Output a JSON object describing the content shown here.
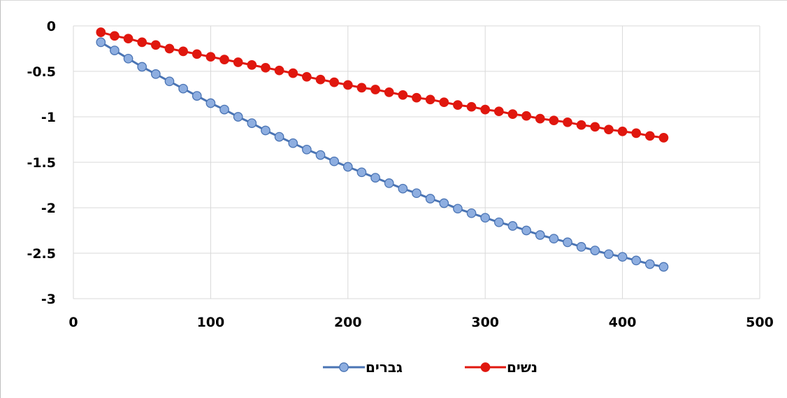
{
  "chart_data": {
    "type": "scatter",
    "title": "",
    "xlabel": "",
    "ylabel": "",
    "xlim": [
      0,
      500
    ],
    "ylim": [
      -3,
      0
    ],
    "x_ticks": [
      0,
      100,
      200,
      300,
      400,
      500
    ],
    "y_ticks": [
      0,
      -0.5,
      -1,
      -1.5,
      -2,
      -2.5,
      -3
    ],
    "x_tick_labels": [
      "0",
      "100",
      "200",
      "300",
      "400",
      "500"
    ],
    "y_tick_labels": [
      "0",
      "-0.5",
      "-1",
      "-1.5",
      "-2",
      "-2.5",
      "-3"
    ],
    "grid": true,
    "legend_position": "bottom",
    "x": [
      20,
      30,
      40,
      50,
      60,
      70,
      80,
      90,
      100,
      110,
      120,
      130,
      140,
      150,
      160,
      170,
      180,
      190,
      200,
      210,
      220,
      230,
      240,
      250,
      260,
      270,
      280,
      290,
      300,
      310,
      320,
      330,
      340,
      350,
      360,
      370,
      380,
      390,
      400,
      410,
      420,
      430
    ],
    "series": [
      {
        "name": "גברים",
        "color": "#4a74b4",
        "marker_color": "#8eaee0",
        "values": [
          -0.18,
          -0.27,
          -0.36,
          -0.45,
          -0.53,
          -0.61,
          -0.69,
          -0.77,
          -0.85,
          -0.92,
          -1.0,
          -1.07,
          -1.15,
          -1.22,
          -1.29,
          -1.36,
          -1.42,
          -1.49,
          -1.55,
          -1.61,
          -1.67,
          -1.73,
          -1.79,
          -1.84,
          -1.9,
          -1.95,
          -2.01,
          -2.06,
          -2.11,
          -2.16,
          -2.2,
          -2.25,
          -2.3,
          -2.34,
          -2.38,
          -2.43,
          -2.47,
          -2.51,
          -2.54,
          -2.58,
          -2.62,
          -2.65
        ]
      },
      {
        "name": "נשים",
        "color": "#e0170e",
        "marker_color": "#e0170e",
        "values": [
          -0.07,
          -0.11,
          -0.14,
          -0.18,
          -0.21,
          -0.25,
          -0.28,
          -0.31,
          -0.34,
          -0.37,
          -0.4,
          -0.43,
          -0.46,
          -0.49,
          -0.52,
          -0.56,
          -0.59,
          -0.62,
          -0.65,
          -0.68,
          -0.7,
          -0.73,
          -0.76,
          -0.79,
          -0.81,
          -0.84,
          -0.87,
          -0.89,
          -0.92,
          -0.94,
          -0.97,
          -0.99,
          -1.02,
          -1.04,
          -1.06,
          -1.09,
          -1.11,
          -1.14,
          -1.16,
          -1.18,
          -1.21,
          -1.23
        ]
      }
    ]
  }
}
